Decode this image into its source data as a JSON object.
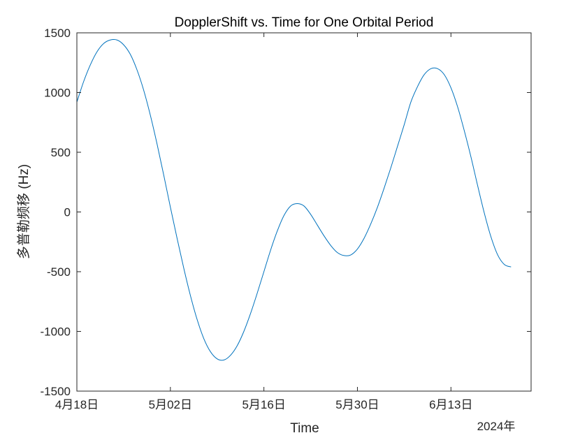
{
  "chart_data": {
    "type": "line",
    "title": "DopplerShift vs. Time for One Orbital Period",
    "xlabel": "Time",
    "ylabel": "多普勒频移 (Hz)",
    "x_secondary_label": "2024年",
    "xlim": [
      "2024-04-18",
      "2024-06-25"
    ],
    "ylim": [
      -1500,
      1500
    ],
    "x_ticks": [
      {
        "date": "2024-04-18",
        "label": "4月18日"
      },
      {
        "date": "2024-05-02",
        "label": "5月02日"
      },
      {
        "date": "2024-05-16",
        "label": "5月16日"
      },
      {
        "date": "2024-05-30",
        "label": "5月30日"
      },
      {
        "date": "2024-06-13",
        "label": "6月13日"
      }
    ],
    "y_ticks": [
      -1500,
      -1000,
      -500,
      0,
      500,
      1000,
      1500
    ],
    "grid": false,
    "series": [
      {
        "color": "#0072bd",
        "x": [
          "2024-04-18",
          "2024-04-19",
          "2024-04-20",
          "2024-04-21",
          "2024-04-22",
          "2024-04-23",
          "2024-04-24",
          "2024-04-25",
          "2024-04-26",
          "2024-04-27",
          "2024-04-28",
          "2024-04-29",
          "2024-04-30",
          "2024-05-01",
          "2024-05-02",
          "2024-05-03",
          "2024-05-04",
          "2024-05-05",
          "2024-05-06",
          "2024-05-07",
          "2024-05-08",
          "2024-05-09",
          "2024-05-10",
          "2024-05-11",
          "2024-05-12",
          "2024-05-13",
          "2024-05-14",
          "2024-05-15",
          "2024-05-16",
          "2024-05-17",
          "2024-05-18",
          "2024-05-19",
          "2024-05-20",
          "2024-05-21",
          "2024-05-22",
          "2024-05-23",
          "2024-05-24",
          "2024-05-25",
          "2024-05-26",
          "2024-05-27",
          "2024-05-28",
          "2024-05-29",
          "2024-05-30",
          "2024-05-31",
          "2024-06-01",
          "2024-06-02",
          "2024-06-03",
          "2024-06-04",
          "2024-06-05",
          "2024-06-06",
          "2024-06-07",
          "2024-06-08",
          "2024-06-09",
          "2024-06-10",
          "2024-06-11",
          "2024-06-12",
          "2024-06-13",
          "2024-06-14",
          "2024-06-15",
          "2024-06-16",
          "2024-06-17",
          "2024-06-18",
          "2024-06-19",
          "2024-06-20",
          "2024-06-21",
          "2024-06-22"
        ],
        "y": [
          920,
          1090,
          1230,
          1340,
          1410,
          1440,
          1440,
          1400,
          1320,
          1190,
          1020,
          810,
          570,
          310,
          40,
          -220,
          -470,
          -700,
          -900,
          -1060,
          -1170,
          -1230,
          -1240,
          -1200,
          -1120,
          -1000,
          -850,
          -680,
          -500,
          -320,
          -160,
          -30,
          50,
          70,
          50,
          -20,
          -110,
          -200,
          -280,
          -340,
          -365,
          -360,
          -310,
          -220,
          -100,
          40,
          200,
          370,
          550,
          730,
          920,
          1050,
          1150,
          1200,
          1200,
          1150,
          1040,
          880,
          680,
          460,
          220,
          -10,
          -210,
          -360,
          -440,
          -460
        ]
      }
    ]
  }
}
